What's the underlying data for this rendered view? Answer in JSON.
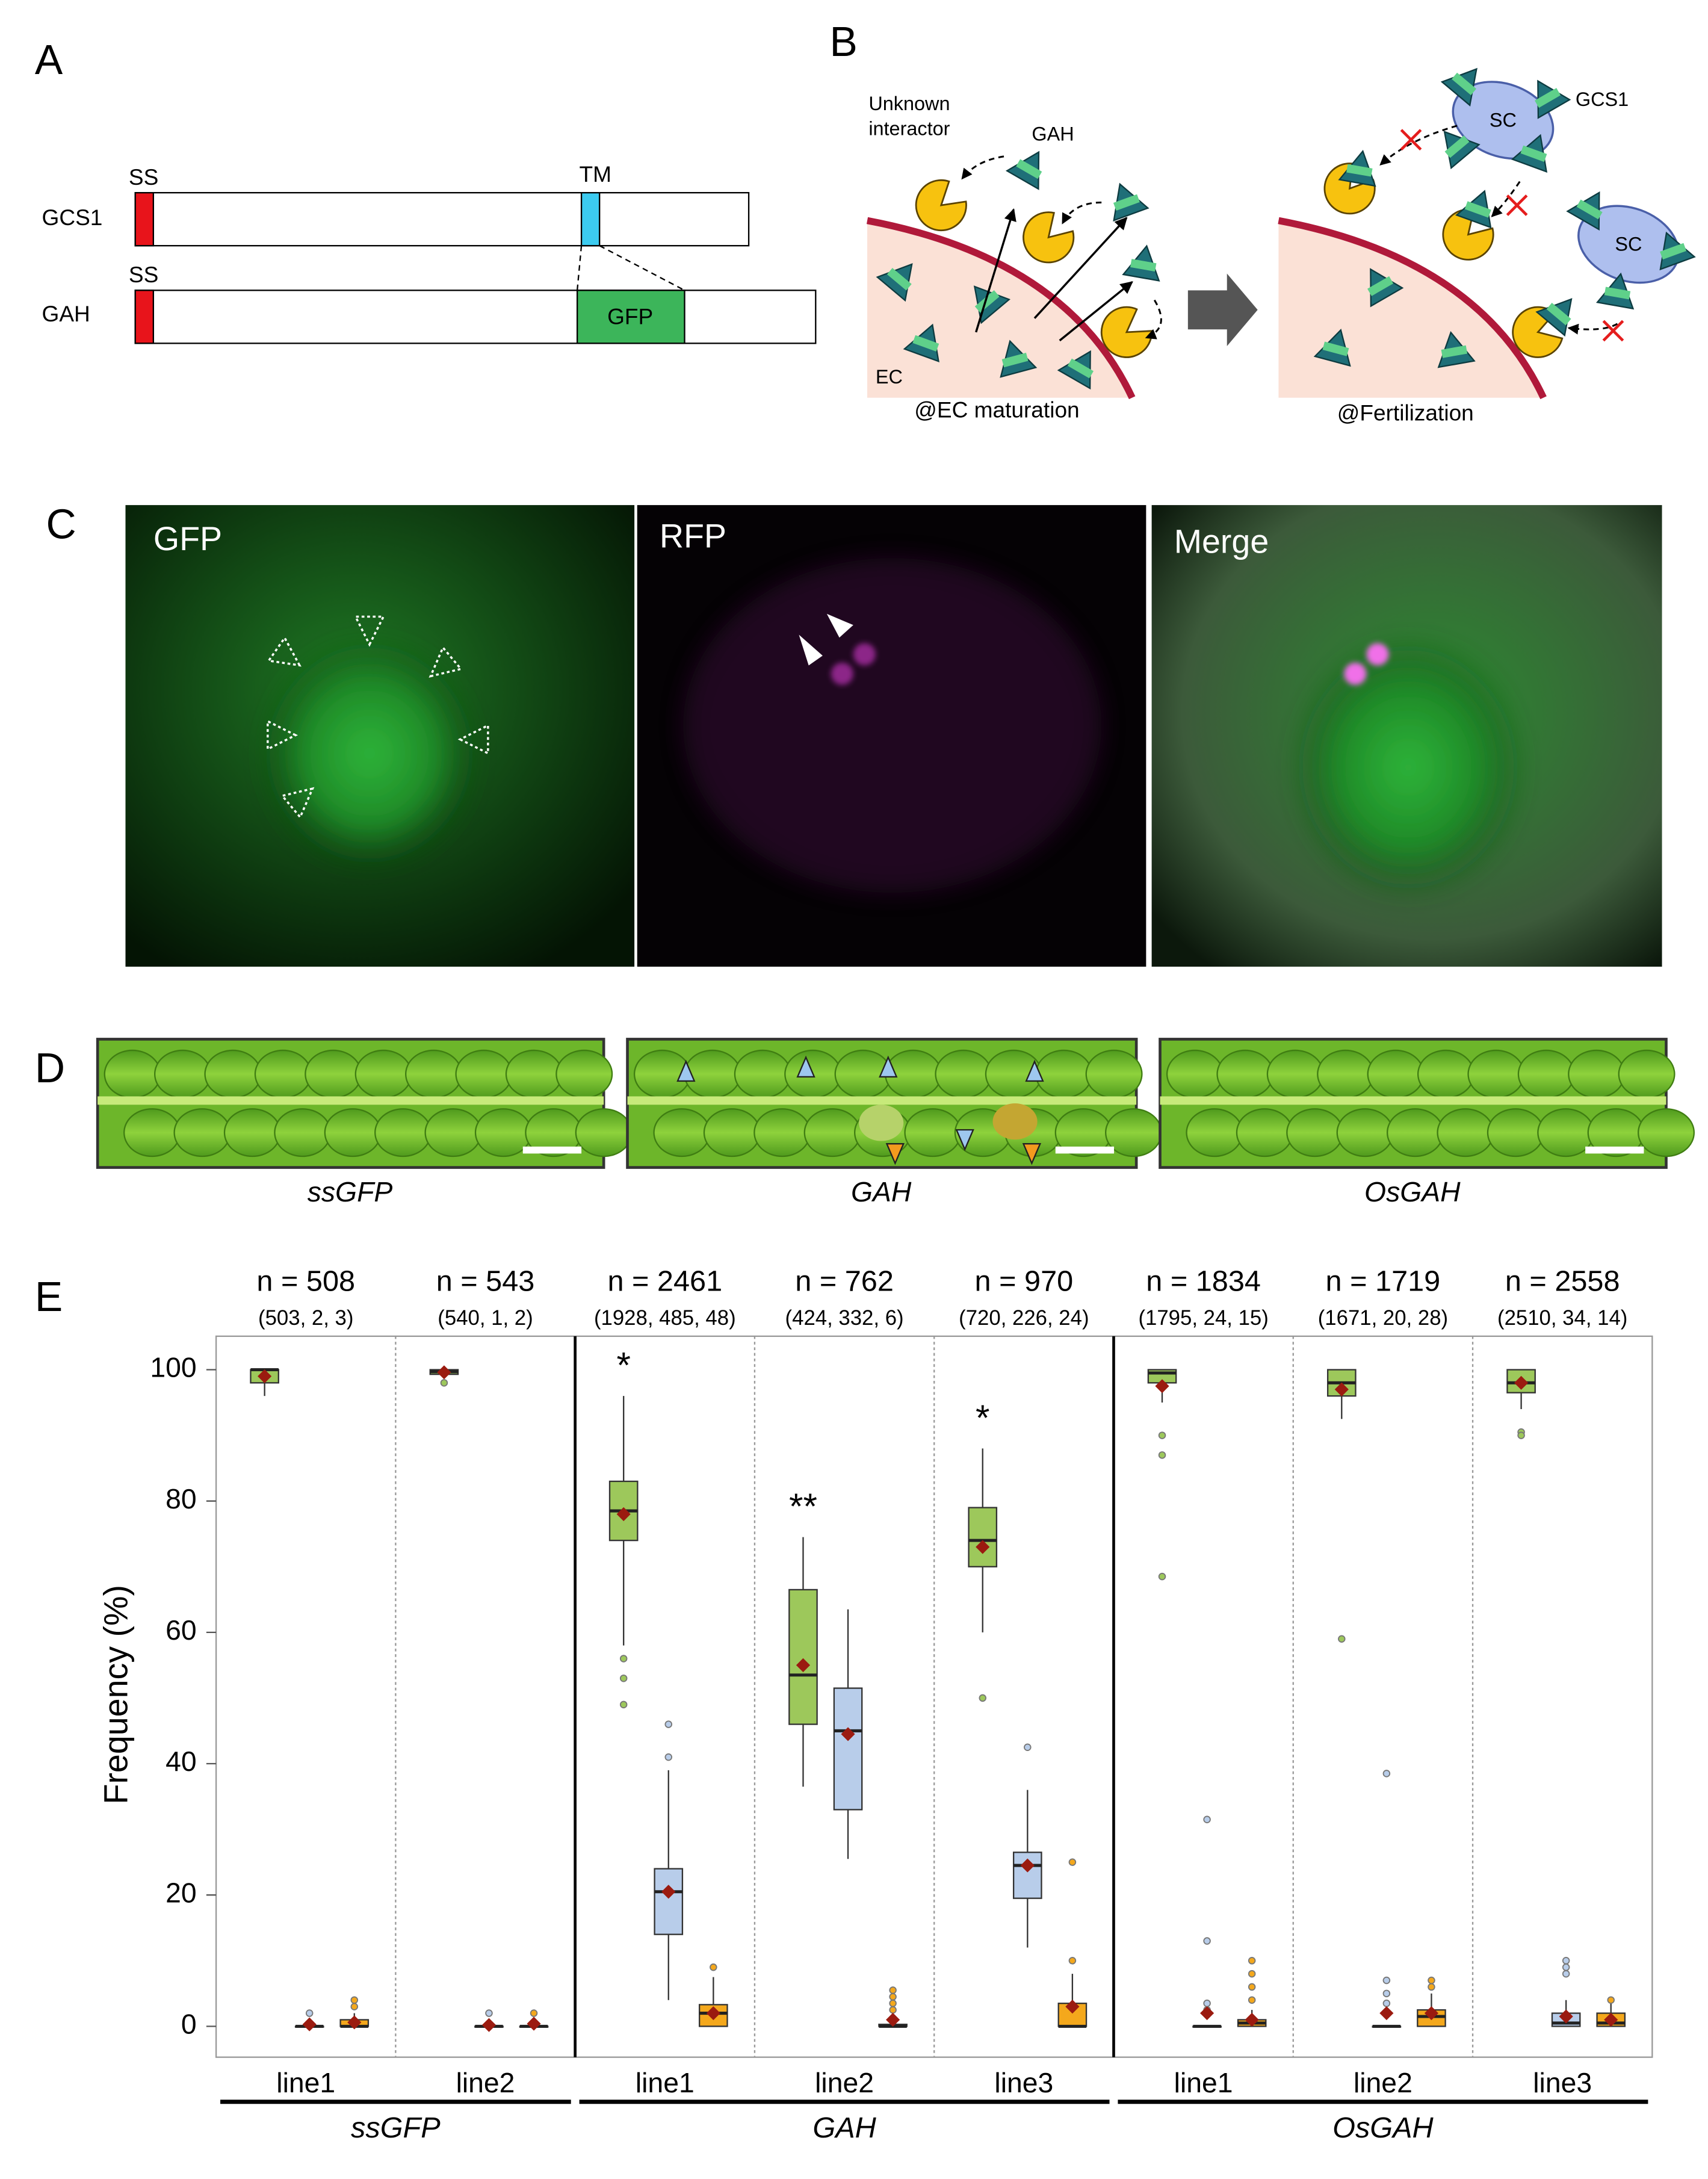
{
  "panel_a": {
    "label": "A",
    "rows": [
      {
        "name": "GCS1",
        "ss": "SS",
        "tm": "TM"
      },
      {
        "name": "GAH",
        "ss": "SS",
        "gfp": "GFP"
      }
    ]
  },
  "panel_b": {
    "label": "B",
    "interactor": [
      "Unknown",
      "interactor"
    ],
    "gah": "GAH",
    "ec": "EC",
    "left_caption": "@EC maturation",
    "gcs1": "GCS1",
    "sc": [
      "SC",
      "SC"
    ],
    "right_caption": "@Fertilization"
  },
  "panel_c": {
    "label": "C",
    "images": [
      "GFP",
      "RFP",
      "Merge"
    ]
  },
  "panel_d": {
    "label": "D",
    "images": [
      "ssGFP",
      "GAH",
      "OsGAH"
    ]
  },
  "chart_data": {
    "type": "box",
    "panel_label": "E",
    "ylabel": "Frequency (%)",
    "ylim": [
      -4.7,
      105.1
    ],
    "yticks": [
      0,
      20,
      40,
      60,
      80,
      100
    ],
    "box_colors": [
      "#9dc85b",
      "#b8cdea",
      "#f4a81c"
    ],
    "mean_color": "#9b1b10",
    "genotypes": [
      {
        "label": "ssGFP",
        "lines": [
          {
            "category": "line1",
            "n": "n = 508",
            "counts": "(503, 2, 3)",
            "boxes": [
              {
                "whislo": 96,
                "q1": 98,
                "median": 100,
                "q3": 100,
                "whishi": 100,
                "mean": 99,
                "outliers": []
              },
              {
                "whislo": 0,
                "q1": 0,
                "median": 0,
                "q3": 0,
                "whishi": 0,
                "mean": 0.3,
                "outliers": [
                  2
                ]
              },
              {
                "whislo": 0,
                "q1": 0,
                "median": 0,
                "q3": 1,
                "whishi": 2,
                "mean": 0.6,
                "outliers": [
                  3,
                  4
                ]
              }
            ]
          },
          {
            "category": "line2",
            "n": "n = 543",
            "counts": "(540, 1, 2)",
            "boxes": [
              {
                "whislo": 99,
                "q1": 99.3,
                "median": 99.7,
                "q3": 100,
                "whishi": 100,
                "mean": 99.6,
                "outliers": [
                  98
                ]
              },
              {
                "whislo": 0,
                "q1": 0,
                "median": 0,
                "q3": 0,
                "whishi": 0,
                "mean": 0.2,
                "outliers": [
                  2
                ]
              },
              {
                "whislo": 0,
                "q1": 0,
                "median": 0,
                "q3": 0,
                "whishi": 0,
                "mean": 0.4,
                "outliers": [
                  2
                ]
              }
            ]
          }
        ]
      },
      {
        "label": "GAH",
        "lines": [
          {
            "category": "line1",
            "n": "n = 2461",
            "counts": "(1928, 485, 48)",
            "annotation": "*",
            "boxes": [
              {
                "whislo": 58,
                "q1": 74,
                "median": 78.5,
                "q3": 83,
                "whishi": 96,
                "mean": 78,
                "outliers": [
                  56,
                  53,
                  49
                ]
              },
              {
                "whislo": 4,
                "q1": 14,
                "median": 20.5,
                "q3": 24,
                "whishi": 39,
                "mean": 20.5,
                "outliers": [
                  41,
                  46
                ]
              },
              {
                "whislo": 0,
                "q1": 0,
                "median": 2,
                "q3": 3.3,
                "whishi": 7.5,
                "mean": 2,
                "outliers": [
                  9
                ]
              }
            ]
          },
          {
            "category": "line2",
            "n": "n = 762",
            "counts": "(424, 332, 6)",
            "annotation": "**",
            "boxes": [
              {
                "whislo": 36.5,
                "q1": 46,
                "median": 53.5,
                "q3": 66.5,
                "whishi": 74.5,
                "mean": 55,
                "outliers": []
              },
              {
                "whislo": 25.5,
                "q1": 33,
                "median": 45,
                "q3": 51.5,
                "whishi": 63.5,
                "mean": 44.5,
                "outliers": []
              },
              {
                "whislo": 0,
                "q1": 0,
                "median": 0,
                "q3": 0.3,
                "whishi": 0.5,
                "mean": 1,
                "outliers": [
                  2.5,
                  3.5,
                  4.5,
                  5.5
                ]
              }
            ]
          },
          {
            "category": "line3",
            "n": "n = 970",
            "counts": "(720, 226, 24)",
            "annotation": "*",
            "boxes": [
              {
                "whislo": 60,
                "q1": 70,
                "median": 74,
                "q3": 79,
                "whishi": 88,
                "mean": 73,
                "outliers": [
                  50
                ]
              },
              {
                "whislo": 12,
                "q1": 19.5,
                "median": 24.5,
                "q3": 26.5,
                "whishi": 36,
                "mean": 24.5,
                "outliers": [
                  42.5
                ]
              },
              {
                "whislo": 0,
                "q1": 0,
                "median": 0,
                "q3": 3.5,
                "whishi": 8,
                "mean": 3,
                "outliers": [
                  10,
                  25
                ]
              }
            ]
          }
        ]
      },
      {
        "label": "OsGAH",
        "lines": [
          {
            "category": "line1",
            "n": "n = 1834",
            "counts": "(1795, 24, 15)",
            "boxes": [
              {
                "whislo": 95,
                "q1": 98,
                "median": 99.5,
                "q3": 100,
                "whishi": 100,
                "mean": 97.5,
                "outliers": [
                  90,
                  87,
                  68.5
                ]
              },
              {
                "whislo": 0,
                "q1": 0,
                "median": 0,
                "q3": 0,
                "whishi": 0,
                "mean": 2,
                "outliers": [
                  2.5,
                  3.5,
                  13,
                  31.5
                ]
              },
              {
                "whislo": 0,
                "q1": 0,
                "median": 0.5,
                "q3": 1,
                "whishi": 2.5,
                "mean": 1,
                "outliers": [
                  4,
                  6,
                  8,
                  10
                ]
              }
            ]
          },
          {
            "category": "line2",
            "n": "n = 1719",
            "counts": "(1671, 20, 28)",
            "boxes": [
              {
                "whislo": 92.5,
                "q1": 96,
                "median": 98,
                "q3": 100,
                "whishi": 100,
                "mean": 97,
                "outliers": [
                  59
                ]
              },
              {
                "whislo": 0,
                "q1": 0,
                "median": 0,
                "q3": 0,
                "whishi": 0,
                "mean": 2,
                "outliers": [
                  3.5,
                  5,
                  7,
                  38.5
                ]
              },
              {
                "whislo": 0,
                "q1": 0,
                "median": 1.5,
                "q3": 2.5,
                "whishi": 5,
                "mean": 2,
                "outliers": [
                  6,
                  7
                ]
              }
            ]
          },
          {
            "category": "line3",
            "n": "n = 2558",
            "counts": "(2510, 34, 14)",
            "boxes": [
              {
                "whislo": 94,
                "q1": 96.5,
                "median": 98,
                "q3": 100,
                "whishi": 100,
                "mean": 98,
                "outliers": [
                  90.5,
                  90
                ]
              },
              {
                "whislo": 0,
                "q1": 0,
                "median": 0.5,
                "q3": 2,
                "whishi": 4,
                "mean": 1.5,
                "outliers": [
                  8,
                  9,
                  10
                ]
              },
              {
                "whislo": 0,
                "q1": 0,
                "median": 0.5,
                "q3": 2,
                "whishi": 3.5,
                "mean": 1,
                "outliers": [
                  4
                ]
              }
            ]
          }
        ]
      }
    ]
  }
}
